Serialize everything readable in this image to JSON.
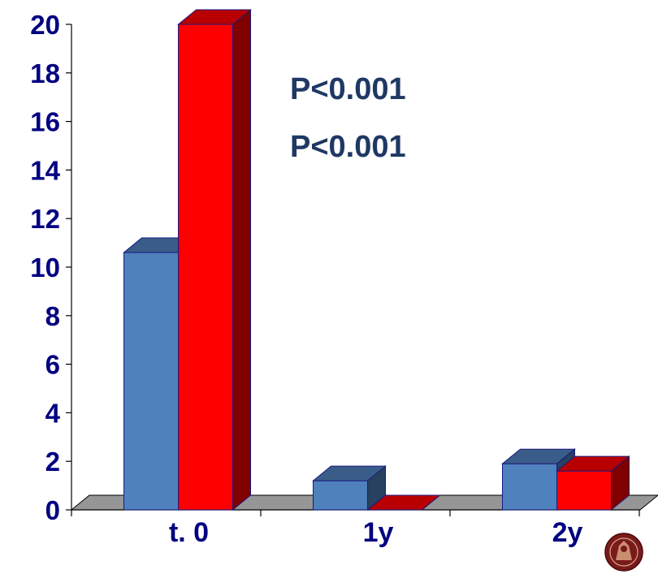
{
  "chart_data": {
    "type": "bar",
    "categories": [
      "t. 0",
      "1y",
      "2y"
    ],
    "series": [
      {
        "values": [
          10.6,
          1.2,
          1.9
        ],
        "color": "#4F81BD"
      },
      {
        "values": [
          20,
          0,
          1.6
        ],
        "color": "#FF0000"
      }
    ],
    "ylim": [
      0,
      20
    ],
    "yticks": [
      0,
      2,
      4,
      6,
      8,
      10,
      12,
      14,
      16,
      18,
      20
    ],
    "ytick_labels": [
      "0",
      "2",
      "4",
      "6",
      "8",
      "10",
      "12",
      "14",
      "16",
      "18",
      "20"
    ],
    "annotations": [
      "P<0.001",
      "P<0.001"
    ],
    "style": "3d-clustered-bar",
    "legend": "none",
    "grid": false,
    "colors": {
      "axis_text": "#000080",
      "annotation_text": "#1F3864",
      "floor": "#969696"
    }
  },
  "logo": {
    "name": "university-seal-icon"
  }
}
